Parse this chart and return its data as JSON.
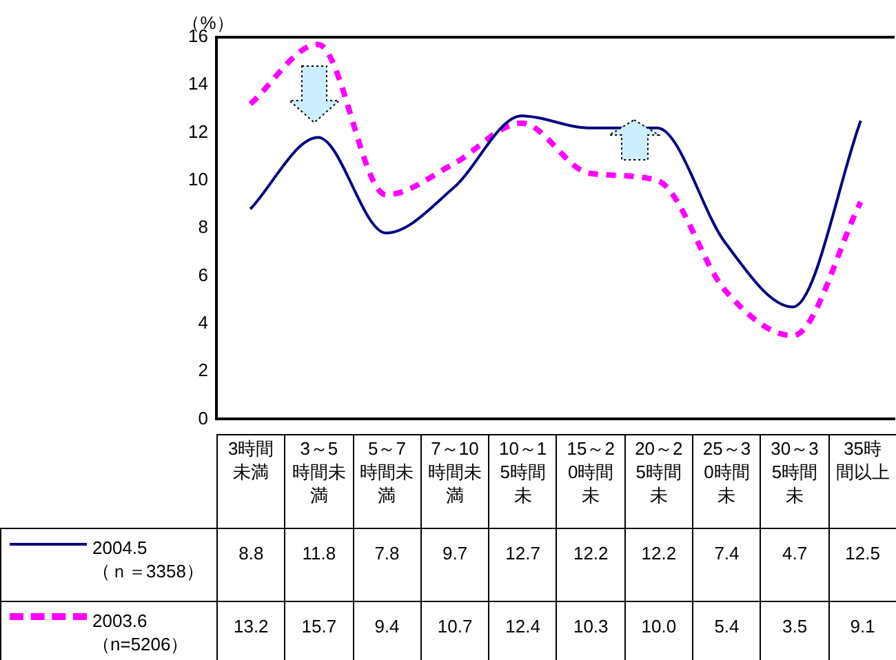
{
  "chart_data": {
    "type": "line",
    "ylabel": "（%）",
    "categories": [
      "3時間未満",
      "3～5時間未満",
      "5～7時間未満",
      "7～10時間未満",
      "10～15時間未",
      "15～20時間未",
      "20～25時間未",
      "25～30時間未",
      "30～35時間未",
      "35時間以上"
    ],
    "series": [
      {
        "name": "2004.5\n（ｎ＝3358）",
        "color": "#000080",
        "line_style": "solid",
        "values": [
          8.8,
          11.8,
          7.8,
          9.7,
          12.7,
          12.2,
          12.2,
          7.4,
          4.7,
          12.5
        ],
        "value_labels": [
          "8.8",
          "11.8",
          "7.8",
          "9.7",
          "12.7",
          "12.2",
          "12.2",
          "7.4",
          "4.7",
          "12.5"
        ]
      },
      {
        "name": "2003.6\n（n=5206）",
        "color": "#ff00ff",
        "line_style": "dashed",
        "values": [
          13.2,
          15.7,
          9.4,
          10.7,
          12.4,
          10.3,
          10.0,
          5.4,
          3.5,
          9.1
        ],
        "value_labels": [
          "13.2",
          "15.7",
          "9.4",
          "10.7",
          "12.4",
          "10.3",
          "10.0",
          "5.4",
          "3.5",
          "9.1"
        ]
      }
    ],
    "ylim": [
      0,
      16
    ],
    "yticks": [
      0,
      2,
      4,
      6,
      8,
      10,
      12,
      14,
      16
    ],
    "legend": "bottom",
    "marker": "none"
  }
}
